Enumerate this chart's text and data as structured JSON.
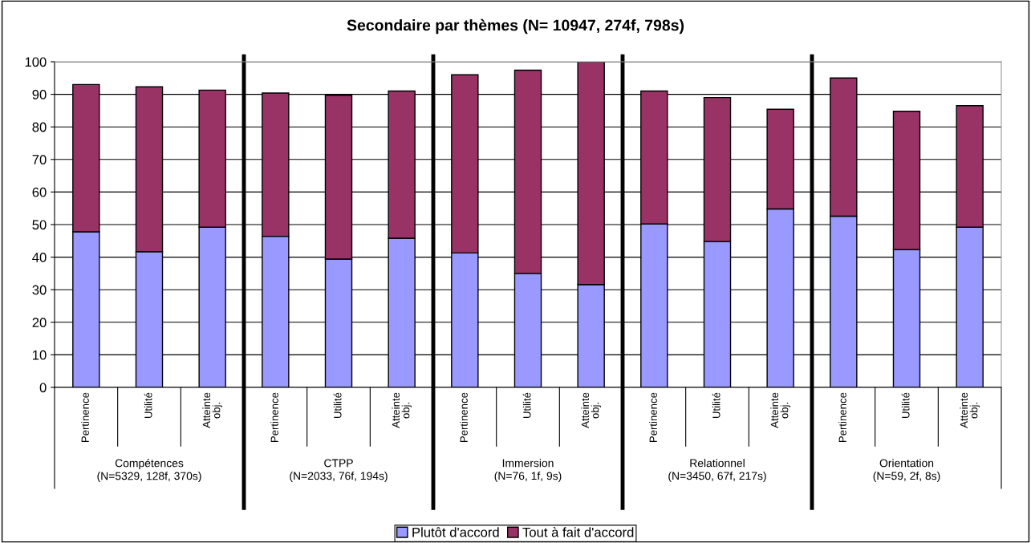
{
  "chart_data": {
    "type": "bar",
    "title": "Secondaire par thèmes (N= 10947, 274f, 798s)",
    "categories": [
      "Pertinence",
      "Utilité",
      "Atteinte\nobj.",
      "Pertinence",
      "Utilité",
      "Atteinte\nobj.",
      "Pertinence",
      "Utilité",
      "Atteinte\nobj.",
      "Pertinence",
      "Utilité",
      "Atteinte\nobj.",
      "Pertinence",
      "Utilité",
      "Atteinte\nobj."
    ],
    "stacked": true,
    "series": [
      {
        "name": "Plutôt d'accord",
        "color": "#9999ff",
        "values": [
          47.8,
          41.7,
          49.2,
          46.4,
          39.4,
          45.8,
          41.3,
          35.0,
          31.6,
          50.2,
          44.8,
          54.8,
          52.6,
          42.3,
          49.2
        ]
      },
      {
        "name": "Tout à fait d'accord",
        "color": "#993366",
        "values": [
          45.2,
          50.6,
          42.1,
          44.0,
          50.3,
          45.2,
          54.7,
          62.4,
          68.4,
          40.8,
          44.2,
          30.6,
          42.4,
          42.5,
          37.3
        ]
      }
    ],
    "annotations": [
      "Compétences\n(N=5329, 128f, 370s)",
      "CTPP\n(N=2033, 76f, 194s)",
      "Immersion\n(N=76, 1f, 9s)",
      "Relationnel\n(N=3450, 67f, 217s)",
      "Orientation\n(N=59, 2f, 8s)"
    ],
    "ylim": [
      0,
      100
    ],
    "yticks": [
      0,
      10,
      20,
      30,
      40,
      50,
      60,
      70,
      80,
      90,
      100
    ],
    "grid": "y",
    "legend": "bottom"
  }
}
